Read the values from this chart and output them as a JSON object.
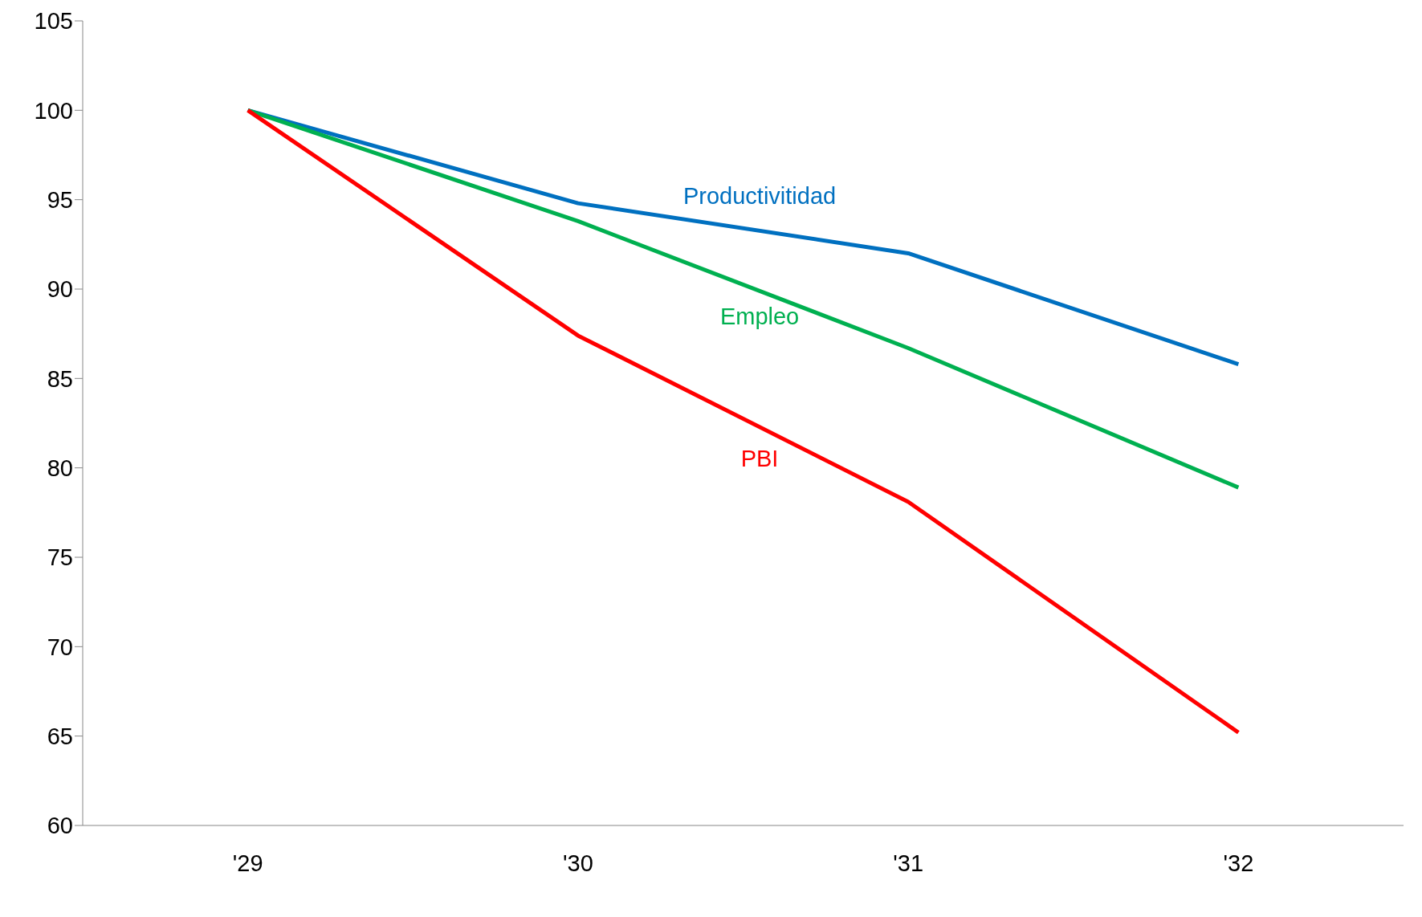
{
  "chart_data": {
    "type": "line",
    "categories": [
      "'29",
      "'30",
      "'31",
      "'32"
    ],
    "series": [
      {
        "name": "Productivitidad",
        "color": "#0070c0",
        "values": [
          100,
          94.8,
          92.0,
          85.8
        ]
      },
      {
        "name": "Empleo",
        "color": "#00b050",
        "values": [
          100,
          93.8,
          86.7,
          78.9
        ]
      },
      {
        "name": "PBI",
        "color": "#ff0000",
        "values": [
          100,
          87.4,
          78.1,
          65.2
        ]
      }
    ],
    "ylim": [
      60,
      105
    ],
    "yticks": [
      60,
      65,
      70,
      75,
      80,
      85,
      90,
      95,
      100,
      105
    ],
    "grid": false,
    "marker": "none",
    "line_style": "solid"
  }
}
